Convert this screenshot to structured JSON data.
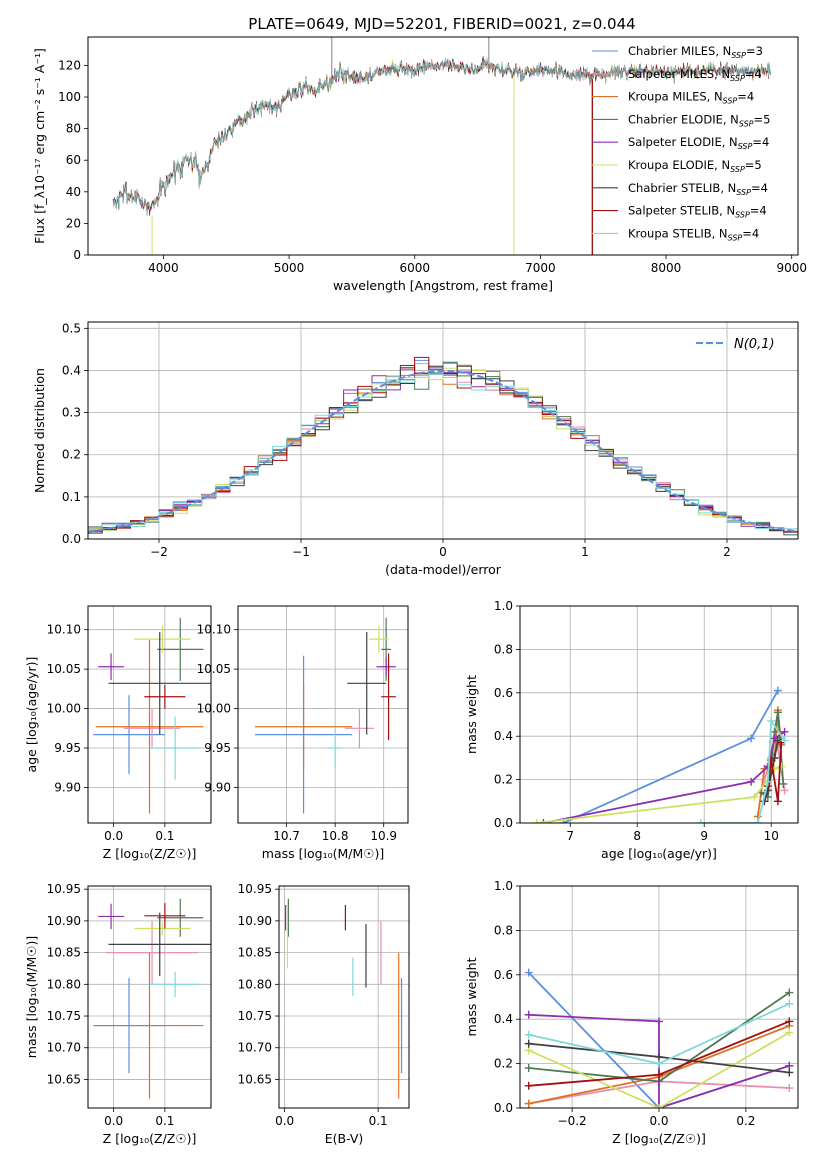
{
  "figure_title": "PLATE=0649, MJD=52201, FIBERID=0021, z=0.044",
  "colors": {
    "Chabrier MILES": "#5B8FE0",
    "Salpeter MILES": "#E890B0",
    "Kroupa MILES": "#E07020",
    "Chabrier ELODIE": "#4E7A55",
    "Salpeter ELODIE": "#8E2FB0",
    "Kroupa ELODIE": "#CDE060",
    "Chabrier STELIB": "#404040",
    "Salpeter STELIB": "#A01010",
    "Kroupa STELIB": "#80D8D8"
  },
  "chart_data": [
    {
      "id": "spectrum",
      "type": "line",
      "xlabel": "wavelength [Angstrom, rest frame]",
      "ylabel": "Flux [f_λ10⁻¹⁷ erg cm⁻² s⁻¹ A⁻¹]",
      "xlim": [
        3400,
        9050
      ],
      "ylim": [
        0,
        138
      ],
      "xticks": [
        4000,
        5000,
        6000,
        7000,
        8000,
        9000
      ],
      "yticks": [
        0,
        20,
        40,
        60,
        80,
        100,
        120
      ],
      "legend_position": "top-right",
      "legend": [
        {
          "label": "Chabrier MILES, N",
          "sub": "SSP",
          "suffix": "=3",
          "color": "#5B8FE0"
        },
        {
          "label": "Salpeter MILES, N",
          "sub": "SSP",
          "suffix": "=4",
          "color": "#E890B0"
        },
        {
          "label": "Kroupa MILES, N",
          "sub": "SSP",
          "suffix": "=4",
          "color": "#E07020"
        },
        {
          "label": "Chabrier ELODIE, N",
          "sub": "SSP",
          "suffix": "=5",
          "color": "#4E7A55"
        },
        {
          "label": "Salpeter ELODIE, N",
          "sub": "SSP",
          "suffix": "=4",
          "color": "#8E2FB0"
        },
        {
          "label": "Kroupa ELODIE, N",
          "sub": "SSP",
          "suffix": "=5",
          "color": "#CDE060"
        },
        {
          "label": "Chabrier STELIB, N",
          "sub": "SSP",
          "suffix": "=4",
          "color": "#404040"
        },
        {
          "label": "Salpeter STELIB, N",
          "sub": "SSP",
          "suffix": "=4",
          "color": "#A01010"
        },
        {
          "label": "Kroupa STELIB, N",
          "sub": "SSP",
          "suffix": "=4",
          "color": "#80D8D8"
        }
      ],
      "continuum": [
        [
          3600,
          32
        ],
        [
          3700,
          40
        ],
        [
          3800,
          35
        ],
        [
          3900,
          30
        ],
        [
          3950,
          38
        ],
        [
          4000,
          42
        ],
        [
          4100,
          55
        ],
        [
          4200,
          62
        ],
        [
          4300,
          50
        ],
        [
          4400,
          70
        ],
        [
          4500,
          78
        ],
        [
          4600,
          84
        ],
        [
          4700,
          90
        ],
        [
          4800,
          96
        ],
        [
          4900,
          93
        ],
        [
          5000,
          102
        ],
        [
          5100,
          106
        ],
        [
          5200,
          104
        ],
        [
          5300,
          108
        ],
        [
          5400,
          115
        ],
        [
          5500,
          114
        ],
        [
          5600,
          111
        ],
        [
          5700,
          116
        ],
        [
          5800,
          118
        ],
        [
          5900,
          118
        ],
        [
          6000,
          116
        ],
        [
          6100,
          119
        ],
        [
          6200,
          120
        ],
        [
          6300,
          120
        ],
        [
          6400,
          118
        ],
        [
          6500,
          117
        ],
        [
          6560,
          122
        ],
        [
          6600,
          118
        ],
        [
          6700,
          117
        ],
        [
          6800,
          116
        ],
        [
          6900,
          115
        ],
        [
          7000,
          117
        ],
        [
          7100,
          116
        ],
        [
          7200,
          115
        ],
        [
          7300,
          114
        ],
        [
          7400,
          113
        ],
        [
          7500,
          114
        ],
        [
          7600,
          116
        ],
        [
          7700,
          115
        ],
        [
          7800,
          117
        ],
        [
          7900,
          116
        ],
        [
          8000,
          116
        ],
        [
          8200,
          116
        ],
        [
          8400,
          117
        ],
        [
          8600,
          116
        ],
        [
          8800,
          117
        ]
      ],
      "spikes_down": [
        {
          "x": 3910,
          "color": "#CDE060",
          "from": 25,
          "to": 0
        },
        {
          "x": 6790,
          "color": "#CDE060",
          "from": 114,
          "to": 0
        },
        {
          "x": 7410,
          "color": "#E07020",
          "from": 111,
          "to": 0
        },
        {
          "x": 7415,
          "color": "#A01010",
          "from": 111,
          "to": 0
        }
      ],
      "spikes_up": [
        {
          "x": 5340,
          "color": "#808080",
          "from": 108,
          "to": 138
        },
        {
          "x": 6590,
          "color": "#808080",
          "from": 118,
          "to": 138
        }
      ]
    },
    {
      "id": "residuals",
      "type": "histogram",
      "xlabel": "(data-model)/error",
      "ylabel": "Normed distribution",
      "xlim": [
        -2.5,
        2.5
      ],
      "ylim": [
        0,
        0.515
      ],
      "xticks": [
        -2,
        -1,
        0,
        1,
        2
      ],
      "yticks": [
        0.0,
        0.1,
        0.2,
        0.3,
        0.4,
        0.5
      ],
      "grid": true,
      "legend_position": "top-right",
      "normal_label": "N(0,1)",
      "normal_color": "#5B8FE0",
      "bin_width": 0.1
    },
    {
      "id": "age-vs-Z",
      "type": "errorbar",
      "xlabel": "Z [log₁₀(Z/Z☉)]",
      "ylabel": "age  [log₁₀(age/yr)]",
      "xlim": [
        -0.05,
        0.19
      ],
      "ylim": [
        9.855,
        10.13
      ],
      "xticks": [
        0.0,
        0.1
      ],
      "yticks": [
        9.9,
        9.95,
        10.0,
        10.05,
        10.1
      ],
      "grid": true,
      "points": [
        {
          "model": "Chabrier MILES",
          "x": 0.03,
          "xerr": 0.07,
          "y": 9.967,
          "yerr": 0.05
        },
        {
          "model": "Salpeter MILES",
          "x": 0.075,
          "xerr": 0.055,
          "y": 9.975,
          "yerr": 0.025
        },
        {
          "model": "Kroupa MILES",
          "x": 0.07,
          "xerr": 0.105,
          "y": 9.977,
          "yerr": 0.11
        },
        {
          "model": "Chabrier ELODIE",
          "x": 0.13,
          "xerr": 0.045,
          "y": 10.075,
          "yerr": 0.04
        },
        {
          "model": "Salpeter ELODIE",
          "x": -0.005,
          "xerr": 0.025,
          "y": 10.053,
          "yerr": 0.017
        },
        {
          "model": "Kroupa ELODIE",
          "x": 0.095,
          "xerr": 0.055,
          "y": 10.088,
          "yerr": 0.017
        },
        {
          "model": "Chabrier STELIB",
          "x": 0.09,
          "xerr": 0.1,
          "y": 10.032,
          "yerr": 0.065
        },
        {
          "model": "Salpeter STELIB",
          "x": 0.1,
          "xerr": 0.04,
          "y": 10.015,
          "yerr": 0.015
        },
        {
          "model": "Kroupa STELIB",
          "x": 0.12,
          "xerr": 0.05,
          "y": 9.95,
          "yerr": 0.04
        }
      ]
    },
    {
      "id": "age-vs-mass",
      "type": "errorbar",
      "xlabel": "mass [log₁₀(M/M☉)]",
      "ylabel": "",
      "xlim": [
        10.6,
        10.95
      ],
      "ylim": [
        9.855,
        10.13
      ],
      "xticks": [
        10.7,
        10.8,
        10.9
      ],
      "yticks": [
        9.9,
        9.95,
        10.0,
        10.05,
        10.1
      ],
      "grid": true,
      "points": [
        {
          "model": "Chabrier MILES",
          "x": 10.735,
          "xerr": 0.1,
          "y": 9.967,
          "yerr": 0.1
        },
        {
          "model": "Salpeter MILES",
          "x": 10.85,
          "xerr": 0.03,
          "y": 9.975,
          "yerr": 0.025
        },
        {
          "model": "Kroupa MILES",
          "x": 10.735,
          "xerr": 0.1,
          "y": 9.977,
          "yerr": 0.055
        },
        {
          "model": "Chabrier ELODIE",
          "x": 10.905,
          "xerr": 0.01,
          "y": 10.075,
          "yerr": 0.04
        },
        {
          "model": "Salpeter ELODIE",
          "x": 10.905,
          "xerr": 0.02,
          "y": 10.053,
          "yerr": 0.012
        },
        {
          "model": "Kroupa ELODIE",
          "x": 10.89,
          "xerr": 0.02,
          "y": 10.088,
          "yerr": 0.017
        },
        {
          "model": "Chabrier STELIB",
          "x": 10.865,
          "xerr": 0.04,
          "y": 10.032,
          "yerr": 0.065
        },
        {
          "model": "Salpeter STELIB",
          "x": 10.91,
          "xerr": 0.015,
          "y": 10.015,
          "yerr": 0.055
        },
        {
          "model": "Kroupa STELIB",
          "x": 10.8,
          "xerr": 0.015,
          "y": 9.95,
          "yerr": 0.025
        }
      ]
    },
    {
      "id": "weight-vs-age",
      "type": "line",
      "xlabel": "age  [log₁₀(age/yr)]",
      "ylabel": "mass weight",
      "xlim": [
        6.25,
        10.4
      ],
      "ylim": [
        0,
        1
      ],
      "xticks": [
        7,
        8,
        9,
        10
      ],
      "yticks": [
        0.0,
        0.2,
        0.4,
        0.6,
        0.8,
        1.0
      ],
      "grid": true,
      "series": [
        {
          "model": "Chabrier MILES",
          "x": [
            6.9,
            9.7,
            10.1
          ],
          "y": [
            0.0,
            0.39,
            0.61
          ]
        },
        {
          "model": "Salpeter MILES",
          "x": [
            9.9,
            10.0,
            10.1,
            10.2
          ],
          "y": [
            0.2,
            0.3,
            0.35,
            0.15
          ]
        },
        {
          "model": "Kroupa MILES",
          "x": [
            9.8,
            9.9,
            10.05,
            10.1,
            10.15
          ],
          "y": [
            0.03,
            0.25,
            0.3,
            0.52,
            0.36
          ]
        },
        {
          "model": "Chabrier ELODIE",
          "x": [
            9.85,
            9.95,
            10.05,
            10.1,
            10.18
          ],
          "y": [
            0.14,
            0.12,
            0.42,
            0.51,
            0.18
          ]
        },
        {
          "model": "Salpeter ELODIE",
          "x": [
            6.6,
            9.7,
            9.95,
            10.05,
            10.2
          ],
          "y": [
            0.0,
            0.19,
            0.26,
            0.39,
            0.42
          ]
        },
        {
          "model": "Kroupa ELODIE",
          "x": [
            6.5,
            9.75,
            9.95,
            10.05,
            10.15
          ],
          "y": [
            0.0,
            0.12,
            0.2,
            0.25,
            0.26
          ]
        },
        {
          "model": "Chabrier STELIB",
          "x": [
            9.9,
            9.95,
            10.05,
            10.1
          ],
          "y": [
            0.1,
            0.15,
            0.3,
            0.38
          ]
        },
        {
          "model": "Salpeter STELIB",
          "x": [
            9.95,
            10.0,
            10.1,
            10.15
          ],
          "y": [
            0.17,
            0.29,
            0.1,
            0.37
          ]
        },
        {
          "model": "Kroupa STELIB",
          "x": [
            8.95,
            9.8,
            9.95,
            10.0,
            10.2
          ],
          "y": [
            0.0,
            0.0,
            0.19,
            0.47,
            0.38
          ]
        }
      ]
    },
    {
      "id": "mass-vs-Z",
      "type": "errorbar",
      "xlabel": "Z [log₁₀(Z/Z☉)]",
      "ylabel": "mass [log₁₀(M/M☉)]",
      "xlim": [
        -0.05,
        0.19
      ],
      "ylim": [
        10.605,
        10.955
      ],
      "xticks": [
        0.0,
        0.1
      ],
      "yticks": [
        10.65,
        10.7,
        10.75,
        10.8,
        10.85,
        10.9,
        10.95
      ],
      "grid": true,
      "points": [
        {
          "model": "Chabrier MILES",
          "x": 0.03,
          "xerr": 0.07,
          "y": 10.735,
          "yerr": 0.075
        },
        {
          "model": "Salpeter MILES",
          "x": 0.075,
          "xerr": 0.09,
          "y": 10.85,
          "yerr": 0.05
        },
        {
          "model": "Kroupa MILES",
          "x": 0.07,
          "xerr": 0.105,
          "y": 10.735,
          "yerr": 0.115
        },
        {
          "model": "Chabrier ELODIE",
          "x": 0.13,
          "xerr": 0.045,
          "y": 10.905,
          "yerr": 0.03
        },
        {
          "model": "Salpeter ELODIE",
          "x": -0.005,
          "xerr": 0.025,
          "y": 10.907,
          "yerr": 0.02
        },
        {
          "model": "Kroupa ELODIE",
          "x": 0.095,
          "xerr": 0.055,
          "y": 10.888,
          "yerr": 0.01
        },
        {
          "model": "Chabrier STELIB",
          "x": 0.09,
          "xerr": 0.1,
          "y": 10.863,
          "yerr": 0.05
        },
        {
          "model": "Salpeter STELIB",
          "x": 0.1,
          "xerr": 0.04,
          "y": 10.908,
          "yerr": 0.02
        },
        {
          "model": "Kroupa STELIB",
          "x": 0.12,
          "xerr": 0.05,
          "y": 10.8,
          "yerr": 0.02
        }
      ]
    },
    {
      "id": "mass-vs-ebv",
      "type": "errorbar",
      "xlabel": "E(B-V)",
      "ylabel": "",
      "xlim": [
        -0.006,
        0.133
      ],
      "ylim": [
        10.605,
        10.955
      ],
      "xticks": [
        0.0,
        0.1
      ],
      "yticks": [
        10.65,
        10.7,
        10.75,
        10.8,
        10.85,
        10.9,
        10.95
      ],
      "grid": true,
      "points": [
        {
          "model": "Chabrier MILES",
          "x": 0.125,
          "xerr": 0.0,
          "y": 10.735,
          "yerr": 0.075
        },
        {
          "model": "Salpeter MILES",
          "x": 0.103,
          "xerr": 0.0,
          "y": 10.85,
          "yerr": 0.05
        },
        {
          "model": "Kroupa MILES",
          "x": 0.122,
          "xerr": 0.0,
          "y": 10.735,
          "yerr": 0.115
        },
        {
          "model": "Chabrier ELODIE",
          "x": 0.004,
          "xerr": 0.0,
          "y": 10.905,
          "yerr": 0.03
        },
        {
          "model": "Salpeter ELODIE",
          "x": 0.001,
          "xerr": 0.0,
          "y": 10.905,
          "yerr": 0.02
        },
        {
          "model": "Kroupa ELODIE",
          "x": 0.003,
          "xerr": 0.0,
          "y": 10.875,
          "yerr": 0.05
        },
        {
          "model": "Chabrier STELIB",
          "x": 0.087,
          "xerr": 0.0,
          "y": 10.845,
          "yerr": 0.05
        },
        {
          "model": "Salpeter STELIB",
          "x": 0.065,
          "xerr": 0.0,
          "y": 10.905,
          "yerr": 0.02
        },
        {
          "model": "Kroupa STELIB",
          "x": 0.073,
          "xerr": 0.0,
          "y": 10.812,
          "yerr": 0.03
        }
      ]
    },
    {
      "id": "weight-vs-Z",
      "type": "line",
      "xlabel": "Z [log₁₀(Z/Z☉)]",
      "ylabel": "mass weight",
      "xlim": [
        -0.32,
        0.32
      ],
      "ylim": [
        0,
        1
      ],
      "xticks": [
        -0.2,
        0.0,
        0.2
      ],
      "yticks": [
        0.0,
        0.2,
        0.4,
        0.6,
        0.8,
        1.0
      ],
      "grid": true,
      "series": [
        {
          "model": "Chabrier MILES",
          "x": [
            -0.3,
            0.0,
            0.3
          ],
          "y": [
            0.61,
            0.0,
            0.19
          ]
        },
        {
          "model": "Salpeter MILES",
          "x": [
            -0.3,
            0.0,
            0.3
          ],
          "y": [
            0.02,
            0.12,
            0.09
          ]
        },
        {
          "model": "Kroupa MILES",
          "x": [
            -0.3,
            0.0,
            0.3
          ],
          "y": [
            0.02,
            0.14,
            0.37
          ]
        },
        {
          "model": "Chabrier ELODIE",
          "x": [
            -0.3,
            0.0,
            0.3
          ],
          "y": [
            0.18,
            0.12,
            0.52
          ]
        },
        {
          "model": "Salpeter ELODIE",
          "x": [
            -0.3,
            0.0,
            0.0,
            0.3
          ],
          "y": [
            0.42,
            0.39,
            0.0,
            0.19
          ]
        },
        {
          "model": "Kroupa ELODIE",
          "x": [
            -0.3,
            0.0,
            0.3
          ],
          "y": [
            0.26,
            0.0,
            0.34
          ]
        },
        {
          "model": "Chabrier STELIB",
          "x": [
            -0.3,
            0.0,
            0.3
          ],
          "y": [
            0.29,
            0.23,
            0.16
          ]
        },
        {
          "model": "Salpeter STELIB",
          "x": [
            -0.3,
            0.0,
            0.3
          ],
          "y": [
            0.1,
            0.15,
            0.39
          ]
        },
        {
          "model": "Kroupa STELIB",
          "x": [
            -0.3,
            0.0,
            0.3
          ],
          "y": [
            0.33,
            0.2,
            0.47
          ]
        }
      ]
    }
  ]
}
